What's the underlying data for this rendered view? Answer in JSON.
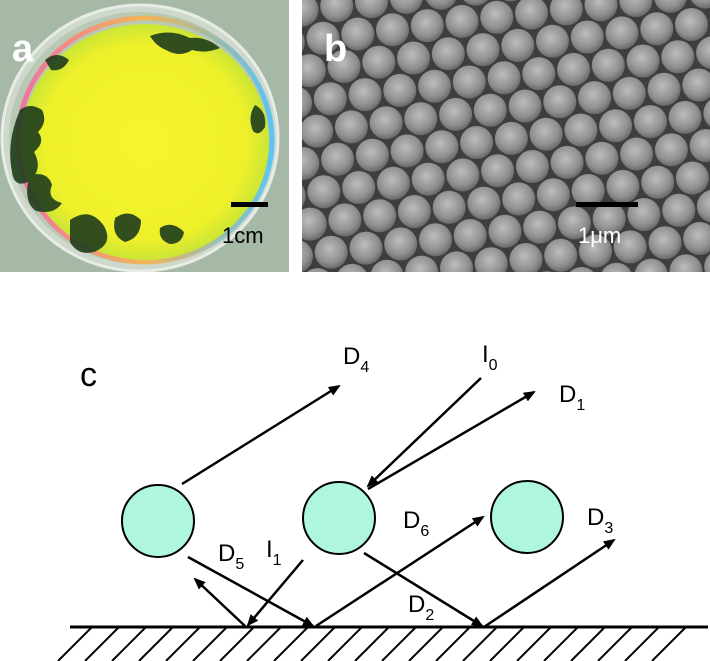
{
  "panel_a": {
    "letter": "a",
    "scale_label": "1cm",
    "colors": {
      "film": "#f4f02a",
      "film_edge": "#b9e23a",
      "dish_bg": "#a5b8a6",
      "defect": "#1e3a1a"
    }
  },
  "panel_b": {
    "letter": "b",
    "scale_label": "1μm",
    "colors": {
      "sphere": "#8c8c8c",
      "sphere_light": "#b8b8b8",
      "gap": "#3c3c3c"
    }
  },
  "panel_c": {
    "letter": "c",
    "labels": {
      "I0": {
        "main": "I",
        "sub": "0"
      },
      "I1": {
        "main": "I",
        "sub": "1"
      },
      "D1": {
        "main": "D",
        "sub": "1"
      },
      "D2": {
        "main": "D",
        "sub": "2"
      },
      "D3": {
        "main": "D",
        "sub": "3"
      },
      "D4": {
        "main": "D",
        "sub": "4"
      },
      "D5": {
        "main": "D",
        "sub": "5"
      },
      "D6": {
        "main": "D",
        "sub": "6"
      }
    },
    "colors": {
      "sphere_fill": "#aef7de",
      "stroke": "#000000"
    }
  }
}
